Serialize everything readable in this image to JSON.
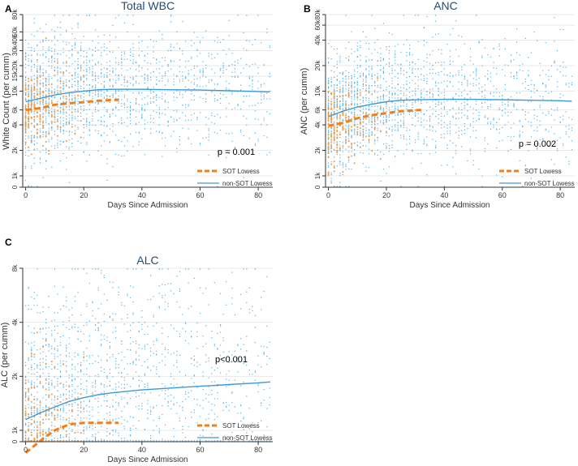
{
  "figure": {
    "colors": {
      "sot": "#f07f1e",
      "non_sot": "#3a9ad9",
      "scatter_non_sot": "#5ab0e6",
      "scatter_sot": "#f39a3d",
      "title": "#1f4e79",
      "grid": "#e8e8e8",
      "axis": "#333333"
    }
  },
  "chart_data": [
    {
      "panel_label": "A",
      "type": "scatter",
      "title": "Total WBC",
      "xlabel": "Days Since Admission",
      "ylabel": "White Count (per cumm)",
      "x_ticks": [
        0,
        20,
        40,
        60,
        80
      ],
      "xlim": [
        -1,
        85
      ],
      "y_scale": "log",
      "y_ticks": [
        {
          "value": 0,
          "label": "0"
        },
        {
          "value": 1000,
          "label": "1k"
        },
        {
          "value": 2000,
          "label": "2k"
        },
        {
          "value": 4000,
          "label": "4k"
        },
        {
          "value": 6000,
          "label": "6k"
        },
        {
          "value": 10000,
          "label": "10k"
        },
        {
          "value": 15000,
          "label": "15k"
        },
        {
          "value": 20000,
          "label": "20k"
        },
        {
          "value": 30000,
          "label": "30k"
        },
        {
          "value": 40000,
          "label": "40k"
        },
        {
          "value": 50000,
          "label": "50k"
        },
        {
          "value": 80000,
          "label": "80k"
        }
      ],
      "annotation": "p = 0.001",
      "legend": [
        {
          "name": "SOT Lowess",
          "style": "dashed"
        },
        {
          "name": "non-SOT Lowess",
          "style": "solid"
        }
      ],
      "series": [
        {
          "name": "non-SOT Lowess",
          "x": [
            0,
            5,
            10,
            15,
            20,
            25,
            30,
            40,
            50,
            60,
            70,
            80,
            84
          ],
          "y": [
            7500,
            8200,
            9000,
            9600,
            10000,
            10400,
            10500,
            10500,
            10400,
            10300,
            10100,
            9900,
            9800
          ]
        },
        {
          "name": "SOT Lowess",
          "x": [
            0,
            5,
            10,
            15,
            20,
            25,
            32
          ],
          "y": [
            6000,
            6300,
            6900,
            7200,
            7400,
            7700,
            7900
          ]
        }
      ]
    },
    {
      "panel_label": "B",
      "type": "scatter",
      "title": "ANC",
      "xlabel": "Days Since Admission",
      "ylabel": "ANC (per cumm)",
      "x_ticks": [
        0,
        20,
        40,
        60,
        80
      ],
      "xlim": [
        -1,
        85
      ],
      "y_scale": "log",
      "y_ticks": [
        {
          "value": 0,
          "label": "0"
        },
        {
          "value": 1000,
          "label": "1k"
        },
        {
          "value": 2000,
          "label": "2k"
        },
        {
          "value": 4000,
          "label": "4k"
        },
        {
          "value": 6000,
          "label": "6k"
        },
        {
          "value": 10000,
          "label": "10k"
        },
        {
          "value": 20000,
          "label": "20k"
        },
        {
          "value": 40000,
          "label": "40k"
        },
        {
          "value": 60000,
          "label": "60k"
        },
        {
          "value": 80000,
          "label": "80k"
        }
      ],
      "annotation": "p = 0.002",
      "legend": [
        {
          "name": "SOT Lowess",
          "style": "dashed"
        },
        {
          "name": "non-SOT Lowess",
          "style": "solid"
        }
      ],
      "series": [
        {
          "name": "non-SOT Lowess",
          "x": [
            0,
            5,
            10,
            15,
            20,
            25,
            30,
            40,
            50,
            60,
            70,
            80,
            84
          ],
          "y": [
            5000,
            5800,
            6500,
            7000,
            7500,
            7800,
            7900,
            8000,
            8000,
            7900,
            7800,
            7700,
            7600
          ]
        },
        {
          "name": "SOT Lowess",
          "x": [
            0,
            5,
            10,
            15,
            20,
            25,
            32
          ],
          "y": [
            3900,
            4200,
            4800,
            5200,
            5500,
            5800,
            6000
          ]
        }
      ]
    },
    {
      "panel_label": "C",
      "type": "scatter",
      "title": "ALC",
      "xlabel": "Days Since Admission",
      "ylabel": "ALC (per cumm)",
      "x_ticks": [
        0,
        20,
        40,
        60,
        80
      ],
      "xlim": [
        -1,
        85
      ],
      "y_scale": "log",
      "y_ticks": [
        {
          "value": 0,
          "label": "0"
        },
        {
          "value": 1000,
          "label": "1k"
        },
        {
          "value": 2000,
          "label": "2k"
        },
        {
          "value": 4000,
          "label": "4k"
        },
        {
          "value": 8000,
          "label": "8k"
        }
      ],
      "annotation": "p<0.001",
      "legend": [
        {
          "name": "SOT Lowess",
          "style": "dashed"
        },
        {
          "name": "non-SOT Lowess",
          "style": "solid"
        }
      ],
      "series": [
        {
          "name": "non-SOT Lowess",
          "x": [
            0,
            5,
            10,
            15,
            20,
            25,
            30,
            40,
            50,
            60,
            70,
            80,
            84
          ],
          "y": [
            1150,
            1250,
            1350,
            1450,
            1520,
            1580,
            1620,
            1680,
            1720,
            1760,
            1800,
            1840,
            1860
          ]
        },
        {
          "name": "SOT Lowess",
          "x": [
            0,
            3,
            6,
            10,
            15,
            20,
            25,
            32
          ],
          "y": [
            750,
            820,
            900,
            1000,
            1080,
            1100,
            1100,
            1100
          ]
        }
      ]
    }
  ]
}
